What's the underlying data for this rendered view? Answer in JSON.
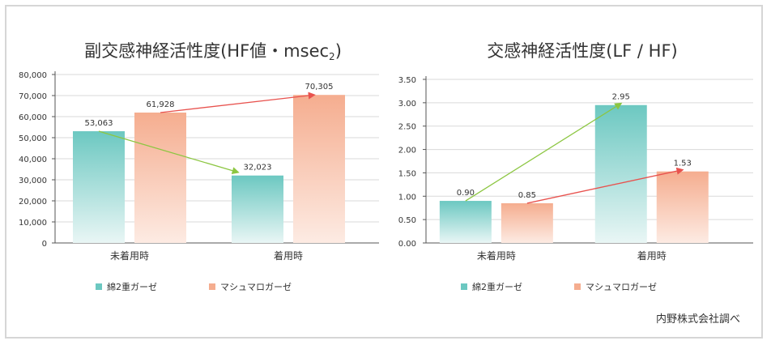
{
  "source_note": "内野株式会社調べ",
  "colors": {
    "teal_top": "#6cc8c1",
    "teal_bottom": "#e9f6f5",
    "salmon_top": "#f5ad8f",
    "salmon_bottom": "#fdebe3",
    "green_arrow": "#8cc641",
    "red_arrow": "#e8524e",
    "axis": "#555555",
    "grid": "#d9d9d9",
    "text": "#333333"
  },
  "chart_data": [
    {
      "type": "bar",
      "title": "副交感神経活性度(HF値・msec",
      "title_sub": "2",
      "title_suffix": ")",
      "categories": [
        "未着用時",
        "着用時"
      ],
      "series": [
        {
          "name": "綿2重ガーゼ",
          "values": [
            53063,
            32023
          ],
          "labels": [
            "53,063",
            "32,023"
          ]
        },
        {
          "name": "マシュマロガーゼ",
          "values": [
            61928,
            70305
          ],
          "labels": [
            "61,928",
            "70,305"
          ]
        }
      ],
      "ylim": [
        0,
        80000
      ],
      "yticks": [
        0,
        10000,
        20000,
        30000,
        40000,
        50000,
        60000,
        70000,
        80000
      ],
      "ytick_labels": [
        "0",
        "10,000",
        "20,000",
        "30,000",
        "40,000",
        "50,000",
        "60,000",
        "70,000",
        "80,000"
      ],
      "grid": true,
      "legend": "bottom",
      "annotations": [
        {
          "type": "arrow",
          "from_series": 0,
          "from_cat": 0,
          "to_series": 0,
          "to_cat": 1,
          "color": "green"
        },
        {
          "type": "arrow",
          "from_series": 1,
          "from_cat": 0,
          "to_series": 1,
          "to_cat": 1,
          "color": "red"
        }
      ]
    },
    {
      "type": "bar",
      "title": "交感神経活性度(LF / HF)",
      "title_sub": "",
      "title_suffix": "",
      "categories": [
        "未着用時",
        "着用時"
      ],
      "series": [
        {
          "name": "綿2重ガーゼ",
          "values": [
            0.9,
            2.95
          ],
          "labels": [
            "0.90",
            "2.95"
          ]
        },
        {
          "name": "マシュマロガーゼ",
          "values": [
            0.85,
            1.53
          ],
          "labels": [
            "0.85",
            "1.53"
          ]
        }
      ],
      "ylim": [
        0,
        3.5
      ],
      "yticks": [
        0,
        0.5,
        1.0,
        1.5,
        2.0,
        2.5,
        3.0,
        3.5
      ],
      "ytick_labels": [
        "0.00",
        "0.50",
        "1.00",
        "1.50",
        "2.00",
        "2.50",
        "3.00",
        "3.50"
      ],
      "grid": true,
      "legend": "bottom",
      "annotations": [
        {
          "type": "arrow",
          "from_series": 0,
          "from_cat": 0,
          "to_series": 0,
          "to_cat": 1,
          "color": "green"
        },
        {
          "type": "arrow",
          "from_series": 1,
          "from_cat": 0,
          "to_series": 1,
          "to_cat": 1,
          "color": "red"
        }
      ]
    }
  ]
}
